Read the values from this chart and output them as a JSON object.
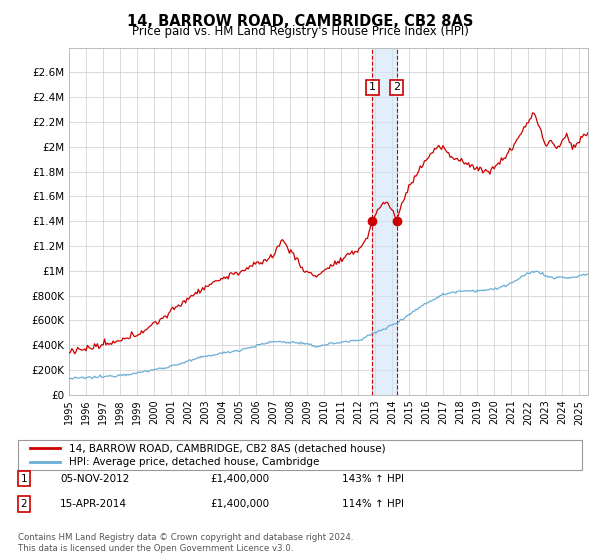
{
  "title": "14, BARROW ROAD, CAMBRIDGE, CB2 8AS",
  "subtitle": "Price paid vs. HM Land Registry's House Price Index (HPI)",
  "legend_line1": "14, BARROW ROAD, CAMBRIDGE, CB2 8AS (detached house)",
  "legend_line2": "HPI: Average price, detached house, Cambridge",
  "annotation1_date": "05-NOV-2012",
  "annotation1_price": "£1,400,000",
  "annotation1_hpi": "143% ↑ HPI",
  "annotation2_date": "15-APR-2014",
  "annotation2_price": "£1,400,000",
  "annotation2_hpi": "114% ↑ HPI",
  "footer": "Contains HM Land Registry data © Crown copyright and database right 2024.\nThis data is licensed under the Open Government Licence v3.0.",
  "hpi_color": "#6baed6",
  "price_color": "#cc0000",
  "annotation_color": "#cc0000",
  "vline_color": "#cc0000",
  "vshade_color": "#d0e4f7",
  "ylim": [
    0,
    2800000
  ],
  "yticks": [
    0,
    200000,
    400000,
    600000,
    800000,
    1000000,
    1200000,
    1400000,
    1600000,
    1800000,
    2000000,
    2200000,
    2400000,
    2600000
  ],
  "ytick_labels": [
    "£0",
    "£200K",
    "£400K",
    "£600K",
    "£800K",
    "£1M",
    "£1.2M",
    "£1.4M",
    "£1.6M",
    "£1.8M",
    "£2M",
    "£2.2M",
    "£2.4M",
    "£2.6M"
  ],
  "xmin": 1995.0,
  "xmax": 2025.5,
  "purchase_date1": 2012.833,
  "purchase_date2": 2014.25,
  "purchase_price": 1400000
}
